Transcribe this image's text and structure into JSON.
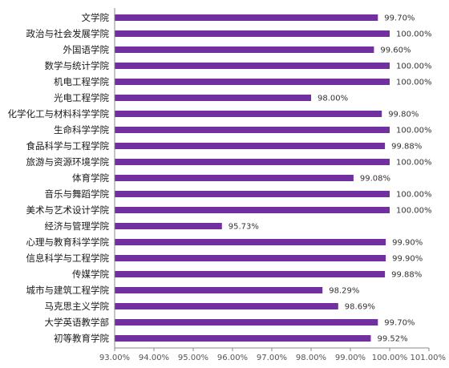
{
  "colors": {
    "bar": "#7030a0",
    "axis": "#888888",
    "text": "#1a1a1a"
  },
  "chart_data": {
    "type": "bar",
    "orientation": "horizontal",
    "title": "",
    "xlabel": "",
    "ylabel": "",
    "xlim": [
      0.93,
      1.01
    ],
    "grid": false,
    "legend": "none",
    "x_ticks": [
      "93.00%",
      "94.00%",
      "95.00%",
      "96.00%",
      "97.00%",
      "98.00%",
      "99.00%",
      "100.00%",
      "101.00%"
    ],
    "categories": [
      "文学院",
      "政治与社会发展学院",
      "外国语学院",
      "数学与统计学院",
      "机电工程学院",
      "光电工程学院",
      "化学化工与材料科学学院",
      "生命科学学院",
      "食品科学与工程学院",
      "旅游与资源环境学院",
      "体育学院",
      "音乐与舞蹈学院",
      "美术与艺术设计学院",
      "经济与管理学院",
      "心理与教育科学学院",
      "信息科学与工程学院",
      "传媒学院",
      "城市与建筑工程学院",
      "马克思主义学院",
      "大学英语教学部",
      "初等教育学院"
    ],
    "values": [
      0.997,
      1.0,
      0.996,
      1.0,
      1.0,
      0.98,
      0.998,
      1.0,
      0.9988,
      1.0,
      0.9908,
      1.0,
      1.0,
      0.9573,
      0.999,
      0.999,
      0.9988,
      0.9829,
      0.9869,
      0.997,
      0.9952
    ],
    "value_labels": [
      "99.70%",
      "100.00%",
      "99.60%",
      "100.00%",
      "100.00%",
      "98.00%",
      "99.80%",
      "100.00%",
      "99.88%",
      "100.00%",
      "99.08%",
      "100.00%",
      "100.00%",
      "95.73%",
      "99.90%",
      "99.90%",
      "99.88%",
      "98.29%",
      "98.69%",
      "99.70%",
      "99.52%"
    ]
  }
}
